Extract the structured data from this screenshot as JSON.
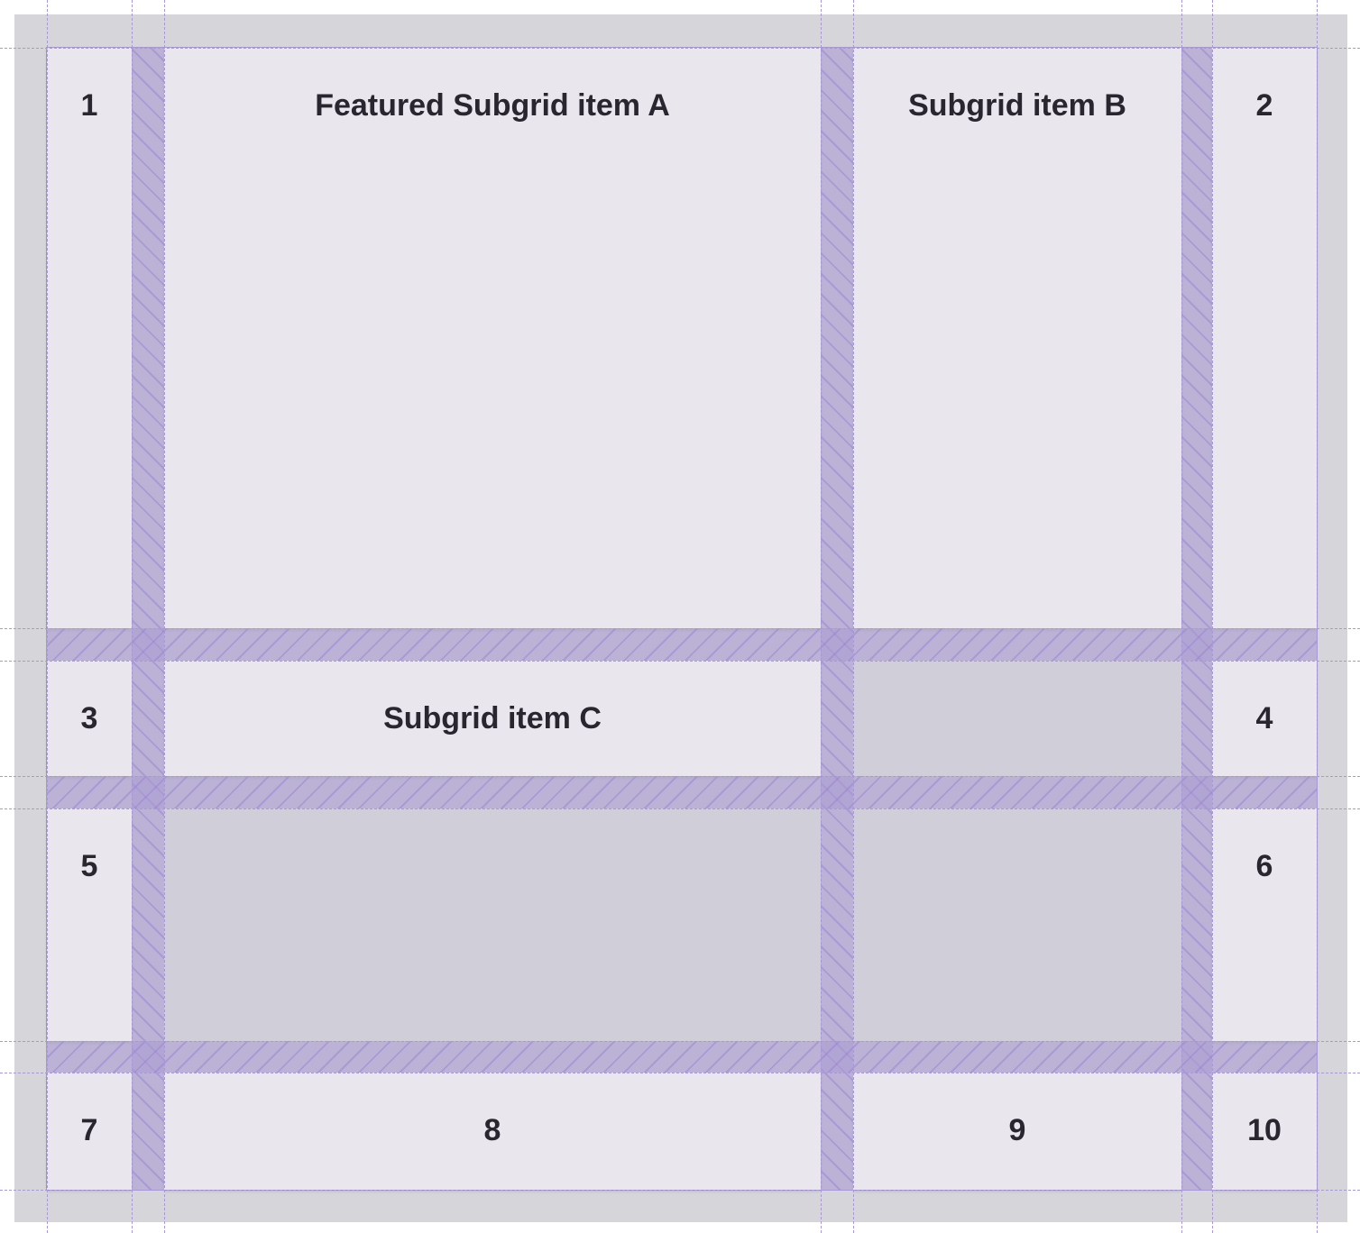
{
  "items": {
    "i1": "1",
    "a": "Featured Subgrid item A",
    "b": "Subgrid item B",
    "i2": "2",
    "i3": "3",
    "c": "Subgrid item C",
    "i4": "4",
    "i5": "5",
    "i6": "6",
    "i7": "7",
    "i8": "8",
    "i9": "9",
    "i10": "10"
  },
  "colors": {
    "item_bg": "#e9e6ed",
    "empty_bg": "#d0ced9",
    "gap": "#c0b8d8",
    "grid_line": "#a898d8",
    "text": "#2a2630"
  }
}
